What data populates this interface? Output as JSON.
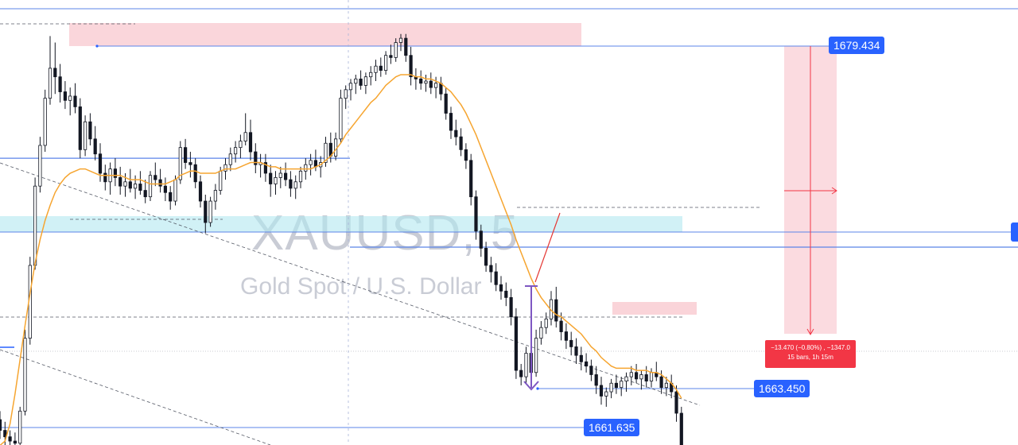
{
  "watermark": {
    "symbol": "XAUUSD, 5",
    "description": "Gold Spot / U.S. Dollar"
  },
  "price_labels": [
    {
      "id": "top",
      "value": "1679.434"
    },
    {
      "id": "mid",
      "value": "1663.450"
    },
    {
      "id": "low",
      "value": "1661.635"
    }
  ],
  "measure": {
    "line1": "−13.470 (−0.80%) , −1347.0",
    "line2": "15 bars, 1h 15m"
  },
  "colors": {
    "candle": "#131722",
    "ma": "#f6a530",
    "hline": "#5b84e8",
    "badge": "#2962ff",
    "red_zone": "#f9cfd5",
    "blue_zone": "#b2e7f0",
    "measure": "#f23645",
    "arrow": "#7e57c2"
  },
  "chart_data": {
    "type": "candlestick",
    "symbol": "XAUUSD",
    "timeframe": "5",
    "candles": [
      [
        1662.0,
        1662.4,
        1661.1,
        1661.5
      ],
      [
        1661.5,
        1661.9,
        1660.8,
        1661.2
      ],
      [
        1661.2,
        1661.5,
        1660.5,
        1661.0
      ],
      [
        1661.0,
        1661.4,
        1660.3,
        1660.9
      ],
      [
        1660.9,
        1662.6,
        1660.6,
        1662.4
      ],
      [
        1662.4,
        1666.2,
        1662.2,
        1665.8
      ],
      [
        1665.8,
        1669.6,
        1665.5,
        1669.2
      ],
      [
        1669.2,
        1673.3,
        1669.0,
        1672.9
      ],
      [
        1672.9,
        1675.2,
        1672.6,
        1674.8
      ],
      [
        1674.8,
        1677.4,
        1674.5,
        1677.0
      ],
      [
        1677.0,
        1679.9,
        1676.7,
        1678.4
      ],
      [
        1678.4,
        1679.6,
        1677.2,
        1678.0
      ],
      [
        1678.0,
        1678.6,
        1676.8,
        1677.3
      ],
      [
        1677.3,
        1677.8,
        1676.5,
        1676.9
      ],
      [
        1676.9,
        1677.5,
        1676.2,
        1677.1
      ],
      [
        1677.1,
        1677.7,
        1676.3,
        1676.6
      ],
      [
        1676.6,
        1677.0,
        1674.2,
        1674.6
      ],
      [
        1674.6,
        1676.2,
        1674.3,
        1675.9
      ],
      [
        1675.9,
        1676.3,
        1674.8,
        1675.1
      ],
      [
        1675.1,
        1675.7,
        1674.1,
        1674.4
      ],
      [
        1674.4,
        1674.9,
        1673.1,
        1673.5
      ],
      [
        1673.5,
        1673.9,
        1672.7,
        1673.1
      ],
      [
        1673.1,
        1674.0,
        1672.5,
        1673.7
      ],
      [
        1673.7,
        1674.2,
        1672.9,
        1673.3
      ],
      [
        1673.3,
        1673.8,
        1672.5,
        1672.9
      ],
      [
        1672.9,
        1673.5,
        1672.4,
        1673.1
      ],
      [
        1673.1,
        1673.7,
        1672.6,
        1672.8
      ],
      [
        1672.8,
        1673.4,
        1672.3,
        1673.0
      ],
      [
        1673.0,
        1673.6,
        1672.5,
        1672.7
      ],
      [
        1672.7,
        1673.2,
        1672.1,
        1672.4
      ],
      [
        1672.4,
        1673.6,
        1672.2,
        1673.4
      ],
      [
        1673.4,
        1674.0,
        1672.9,
        1673.2
      ],
      [
        1673.2,
        1673.7,
        1672.6,
        1672.9
      ],
      [
        1672.9,
        1673.3,
        1672.2,
        1672.6
      ],
      [
        1672.6,
        1672.9,
        1671.8,
        1672.2
      ],
      [
        1672.2,
        1673.4,
        1672.0,
        1673.2
      ],
      [
        1673.2,
        1675.0,
        1673.0,
        1674.7
      ],
      [
        1674.7,
        1675.1,
        1673.7,
        1674.0
      ],
      [
        1674.0,
        1674.5,
        1673.3,
        1673.9
      ],
      [
        1673.9,
        1674.2,
        1672.8,
        1673.1
      ],
      [
        1673.1,
        1673.4,
        1671.9,
        1672.2
      ],
      [
        1672.2,
        1672.5,
        1670.7,
        1671.2
      ],
      [
        1671.2,
        1672.4,
        1671.0,
        1672.2
      ],
      [
        1672.2,
        1673.0,
        1671.8,
        1672.7
      ],
      [
        1672.7,
        1673.8,
        1672.5,
        1673.6
      ],
      [
        1673.6,
        1674.2,
        1673.2,
        1673.9
      ],
      [
        1673.9,
        1674.7,
        1673.6,
        1674.4
      ],
      [
        1674.4,
        1675.0,
        1674.0,
        1674.7
      ],
      [
        1674.7,
        1675.3,
        1674.2,
        1675.0
      ],
      [
        1675.0,
        1676.3,
        1674.8,
        1675.4
      ],
      [
        1675.4,
        1676.0,
        1674.1,
        1674.5
      ],
      [
        1674.5,
        1674.9,
        1673.5,
        1673.9
      ],
      [
        1673.9,
        1674.4,
        1673.3,
        1674.0
      ],
      [
        1674.0,
        1674.4,
        1673.1,
        1673.5
      ],
      [
        1673.5,
        1673.9,
        1672.4,
        1673.0
      ],
      [
        1673.0,
        1673.6,
        1672.5,
        1673.3
      ],
      [
        1673.3,
        1673.8,
        1672.8,
        1673.5
      ],
      [
        1673.5,
        1674.0,
        1672.9,
        1673.2
      ],
      [
        1673.2,
        1673.6,
        1672.4,
        1672.8
      ],
      [
        1672.8,
        1673.4,
        1672.3,
        1673.1
      ],
      [
        1673.1,
        1673.8,
        1672.8,
        1673.6
      ],
      [
        1673.6,
        1674.2,
        1673.2,
        1673.9
      ],
      [
        1673.9,
        1674.4,
        1673.4,
        1674.1
      ],
      [
        1674.1,
        1674.6,
        1673.6,
        1673.8
      ],
      [
        1673.8,
        1674.3,
        1673.3,
        1674.0
      ],
      [
        1674.0,
        1675.2,
        1673.8,
        1674.9
      ],
      [
        1674.9,
        1675.4,
        1674.0,
        1674.3
      ],
      [
        1674.3,
        1675.4,
        1674.1,
        1675.1
      ],
      [
        1675.1,
        1677.4,
        1674.9,
        1677.0
      ],
      [
        1677.0,
        1677.6,
        1676.5,
        1677.4
      ],
      [
        1677.4,
        1677.9,
        1676.9,
        1677.7
      ],
      [
        1677.7,
        1678.1,
        1677.2,
        1677.9
      ],
      [
        1677.9,
        1678.3,
        1677.4,
        1677.6
      ],
      [
        1677.6,
        1678.2,
        1677.2,
        1678.0
      ],
      [
        1678.0,
        1678.5,
        1677.6,
        1678.2
      ],
      [
        1678.2,
        1678.8,
        1677.8,
        1678.5
      ],
      [
        1678.5,
        1678.9,
        1678.0,
        1678.3
      ],
      [
        1678.3,
        1679.2,
        1678.1,
        1679.0
      ],
      [
        1679.0,
        1679.5,
        1678.6,
        1678.9
      ],
      [
        1678.9,
        1679.8,
        1678.7,
        1679.6
      ],
      [
        1679.6,
        1680.0,
        1679.2,
        1679.8
      ],
      [
        1679.8,
        1680.0,
        1678.7,
        1679.0
      ],
      [
        1679.0,
        1679.4,
        1677.6,
        1678.0
      ],
      [
        1678.0,
        1678.4,
        1677.4,
        1677.9
      ],
      [
        1677.9,
        1678.3,
        1677.4,
        1677.7
      ],
      [
        1677.7,
        1678.1,
        1677.3,
        1677.8
      ],
      [
        1677.8,
        1678.2,
        1677.2,
        1677.5
      ],
      [
        1677.5,
        1678.0,
        1677.0,
        1677.7
      ],
      [
        1677.7,
        1678.0,
        1676.9,
        1677.2
      ],
      [
        1677.2,
        1677.5,
        1676.0,
        1676.3
      ],
      [
        1676.3,
        1676.6,
        1675.1,
        1675.5
      ],
      [
        1675.5,
        1676.0,
        1674.8,
        1675.2
      ],
      [
        1675.2,
        1675.6,
        1674.3,
        1674.6
      ],
      [
        1674.6,
        1674.9,
        1673.7,
        1674.1
      ],
      [
        1674.1,
        1674.4,
        1672.0,
        1672.4
      ],
      [
        1672.4,
        1672.7,
        1670.4,
        1670.8
      ],
      [
        1670.8,
        1671.1,
        1669.6,
        1670.0
      ],
      [
        1670.0,
        1670.3,
        1668.9,
        1669.2
      ],
      [
        1669.2,
        1669.6,
        1668.4,
        1668.9
      ],
      [
        1668.9,
        1669.3,
        1668.0,
        1668.3
      ],
      [
        1668.3,
        1668.7,
        1667.6,
        1668.0
      ],
      [
        1668.0,
        1668.4,
        1667.3,
        1667.7
      ],
      [
        1667.7,
        1668.1,
        1666.4,
        1666.8
      ],
      [
        1666.8,
        1667.2,
        1663.9,
        1664.3
      ],
      [
        1664.3,
        1664.6,
        1663.6,
        1664.0
      ],
      [
        1664.0,
        1665.4,
        1663.7,
        1665.1
      ],
      [
        1665.1,
        1665.6,
        1663.9,
        1664.2
      ],
      [
        1664.2,
        1666.2,
        1664.0,
        1665.8
      ],
      [
        1665.8,
        1666.6,
        1665.5,
        1666.3
      ],
      [
        1666.3,
        1667.0,
        1666.0,
        1666.7
      ],
      [
        1666.7,
        1668.0,
        1666.4,
        1667.6
      ],
      [
        1667.6,
        1668.2,
        1666.3,
        1666.6
      ],
      [
        1666.6,
        1667.0,
        1665.7,
        1666.1
      ],
      [
        1666.1,
        1666.5,
        1665.3,
        1665.7
      ],
      [
        1665.7,
        1666.1,
        1665.0,
        1665.4
      ],
      [
        1665.4,
        1665.8,
        1664.6,
        1665.0
      ],
      [
        1665.0,
        1665.4,
        1664.3,
        1664.7
      ],
      [
        1664.7,
        1665.1,
        1664.2,
        1664.5
      ],
      [
        1664.5,
        1664.8,
        1663.8,
        1664.1
      ],
      [
        1664.1,
        1664.5,
        1663.2,
        1663.6
      ],
      [
        1663.6,
        1664.0,
        1662.7,
        1663.1
      ],
      [
        1663.1,
        1663.5,
        1662.6,
        1663.3
      ],
      [
        1663.3,
        1663.9,
        1663.0,
        1663.7
      ],
      [
        1663.7,
        1664.1,
        1663.2,
        1663.5
      ],
      [
        1663.5,
        1664.0,
        1663.1,
        1663.8
      ],
      [
        1663.8,
        1664.2,
        1663.3,
        1664.0
      ],
      [
        1664.0,
        1664.5,
        1663.6,
        1664.2
      ],
      [
        1664.2,
        1664.6,
        1663.7,
        1663.9
      ],
      [
        1663.9,
        1664.3,
        1663.4,
        1664.1
      ],
      [
        1664.1,
        1664.5,
        1663.5,
        1663.8
      ],
      [
        1663.8,
        1664.4,
        1663.5,
        1664.2
      ],
      [
        1664.2,
        1664.7,
        1663.8,
        1664.0
      ],
      [
        1664.0,
        1664.3,
        1663.2,
        1663.5
      ],
      [
        1663.5,
        1664.0,
        1663.1,
        1663.7
      ],
      [
        1663.7,
        1664.1,
        1663.0,
        1663.3
      ],
      [
        1663.3,
        1663.6,
        1661.9,
        1662.3
      ],
      [
        1662.3,
        1662.6,
        1660.1,
        1660.5
      ]
    ],
    "moving_average": [
      1660.8,
      1661.0,
      1661.8,
      1663.2,
      1664.8,
      1666.4,
      1667.9,
      1669.3,
      1670.4,
      1671.3,
      1672.0,
      1672.6,
      1673.0,
      1673.3,
      1673.5,
      1673.6,
      1673.7,
      1673.7,
      1673.6,
      1673.5,
      1673.4,
      1673.4,
      1673.4,
      1673.4,
      1673.4,
      1673.3,
      1673.2,
      1673.2,
      1673.2,
      1673.1,
      1673.0,
      1673.0,
      1673.0,
      1673.0,
      1673.1,
      1673.2,
      1673.4,
      1673.5,
      1673.6,
      1673.6,
      1673.5,
      1673.5,
      1673.5,
      1673.5,
      1673.6,
      1673.7,
      1673.7,
      1673.7,
      1673.8,
      1673.9,
      1674.0,
      1674.0,
      1674.0,
      1673.9,
      1673.8,
      1673.8,
      1673.7,
      1673.7,
      1673.7,
      1673.7,
      1673.7,
      1673.7,
      1673.7,
      1673.8,
      1673.9,
      1674.1,
      1674.3,
      1674.6,
      1674.9,
      1675.3,
      1675.6,
      1675.9,
      1676.2,
      1676.5,
      1676.8,
      1677.0,
      1677.3,
      1677.6,
      1677.8,
      1678.0,
      1678.1,
      1678.1,
      1678.1,
      1678.0,
      1678.0,
      1677.9,
      1677.9,
      1677.8,
      1677.7,
      1677.5,
      1677.3,
      1677.0,
      1676.7,
      1676.3,
      1675.8,
      1675.3,
      1674.7,
      1674.1,
      1673.5,
      1672.9,
      1672.3,
      1671.7,
      1671.1,
      1670.4,
      1669.8,
      1669.2,
      1668.6,
      1668.1,
      1667.7,
      1667.4,
      1667.1,
      1666.9,
      1666.8,
      1666.6,
      1666.4,
      1666.2,
      1666.0,
      1665.7,
      1665.4,
      1665.2,
      1664.9,
      1664.7,
      1664.5,
      1664.4,
      1664.4,
      1664.4,
      1664.4,
      1664.3,
      1664.3,
      1664.3,
      1664.2,
      1664.2,
      1664.1,
      1663.9,
      1663.7,
      1663.4,
      1663.0
    ],
    "horizontal_levels": [
      1679.434,
      1663.45,
      1661.635,
      1674.2,
      1669.1,
      1667.7
    ],
    "measure_change": -13.47,
    "measure_change_pct": -0.8,
    "measure_bars": 15
  }
}
